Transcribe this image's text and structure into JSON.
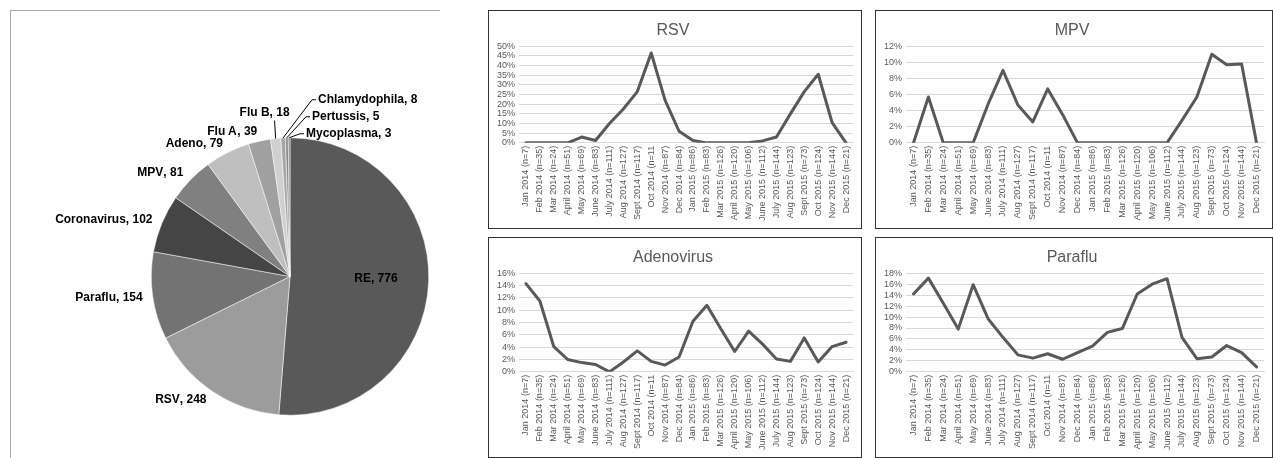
{
  "chart_data": [
    {
      "type": "pie",
      "categories": [
        "RE",
        "RSV",
        "Paraflu",
        "Coronavirus",
        "MPV",
        "Adeno",
        "Flu A",
        "Flu B",
        "Chlamydophila",
        "Pertussis",
        "Mycoplasma"
      ],
      "values": [
        776,
        248,
        154,
        102,
        81,
        79,
        39,
        18,
        8,
        5,
        3
      ],
      "colors": [
        "#595959",
        "#9c9c9c",
        "#737373",
        "#454545",
        "#808080",
        "#bfbfbf",
        "#a0a0a0",
        "#d0d0d0",
        "#a6a6a6",
        "#8c8c8c",
        "#7f7f7f"
      ],
      "value_labels": [
        ", 776",
        ", 248",
        ", 154",
        ", 102",
        ", 81",
        ", 79",
        ", 39",
        ", 18",
        ", 8",
        ", 5",
        ", 3"
      ],
      "legend": false
    },
    {
      "type": "line",
      "title": "RSV",
      "categories": [
        "Jan 2014 (n=7)",
        "Feb 2014 (n=35)",
        "Mar 2014 (n=24)",
        "April 2014 (n=51)",
        "May 2014 (n=69)",
        "June 2014 (n=83)",
        "July 2014 (n=111)",
        "Aug 2014 (n=127)",
        "Sept 2014 (n=117)",
        "Oct 2014 (n=11",
        "Nov 2014 (n=87)",
        "Dec 2014 (n=84)",
        "Jan 2015 (n=86)",
        "Feb 2015 (n=83)",
        "Mar 2015 (n=126)",
        "April 2015 (n=120)",
        "May 2015 (n=106)",
        "June 2015 (n=112)",
        "July 2015 (n=144)",
        "Aug 2015 (n=123)",
        "Sept 2015 (n=73)",
        "Oct 2015 (n=124)",
        "Nov 2015 (n=144)",
        "Dec 2015 (n=21)"
      ],
      "series": [
        {
          "color": "#595959",
          "values": [
            0,
            0,
            0,
            0,
            3,
            1.2,
            10,
            17.5,
            26.5,
            46.5,
            22,
            6,
            1.2,
            0,
            0,
            0,
            0,
            1,
            3,
            15,
            26.5,
            35.5,
            10.5,
            0
          ]
        }
      ],
      "ylim": [
        0,
        50
      ],
      "yticks": [
        {
          "value": 0,
          "label": "0%"
        },
        {
          "value": 5,
          "label": "5%"
        },
        {
          "value": 10,
          "label": "10%"
        },
        {
          "value": 15,
          "label": "15%"
        },
        {
          "value": 20,
          "label": "20%"
        },
        {
          "value": 25,
          "label": "25%"
        },
        {
          "value": 30,
          "label": "30%"
        },
        {
          "value": 35,
          "label": "35%"
        },
        {
          "value": 40,
          "label": "40%"
        },
        {
          "value": 45,
          "label": "45%"
        },
        {
          "value": 50,
          "label": "50%"
        }
      ],
      "grid": "y",
      "legend": false,
      "marker": "none"
    },
    {
      "type": "line",
      "title": "MPV",
      "categories": [
        "Jan 2014 (n=7)",
        "Feb 2014 (n=35)",
        "Mar 2014 (n=24)",
        "April 2014 (n=51)",
        "May 2014 (n=69)",
        "June 2014 (n=83)",
        "July 2014 (n=111)",
        "Aug 2014 (n=127)",
        "Sept 2014 (n=117)",
        "Oct 2014 (n=11",
        "Nov 2014 (n=87)",
        "Dec 2014 (n=84)",
        "Jan 2015 (n=86)",
        "Feb 2015 (n=83)",
        "Mar 2015 (n=126)",
        "April 2015 (n=120)",
        "May 2015 (n=106)",
        "June 2015 (n=112)",
        "July 2015 (n=144)",
        "Aug 2015 (n=123)",
        "Sept 2015 (n=73)",
        "Oct 2015 (n=124)",
        "Nov 2015 (n=144)",
        "Dec 2015 (n=21)"
      ],
      "series": [
        {
          "color": "#595959",
          "values": [
            0,
            5.7,
            0,
            0,
            0,
            4.8,
            9,
            4.7,
            2.6,
            6.7,
            3.5,
            0,
            0,
            0,
            0,
            0,
            0,
            0,
            2.8,
            5.7,
            11,
            9.7,
            9.8,
            0
          ]
        }
      ],
      "ylim": [
        0,
        12
      ],
      "yticks": [
        {
          "value": 0,
          "label": "0%"
        },
        {
          "value": 2,
          "label": "2%"
        },
        {
          "value": 4,
          "label": "4%"
        },
        {
          "value": 6,
          "label": "6%"
        },
        {
          "value": 8,
          "label": "8%"
        },
        {
          "value": 10,
          "label": "10%"
        },
        {
          "value": 12,
          "label": "12%"
        }
      ],
      "grid": "y",
      "legend": false,
      "marker": "none"
    },
    {
      "type": "line",
      "title": "Adenovirus",
      "categories": [
        "Jan 2014 (n=7)",
        "Feb 2014 (n=35)",
        "Mar 2014 (n=24)",
        "April 2014 (n=51)",
        "May 2014 (n=69)",
        "June 2014 (n=83)",
        "July 2014 (n=111)",
        "Aug 2014 (n=127)",
        "Sept 2014 (n=117)",
        "Oct 2014 (n=11",
        "Nov 2014 (n=87)",
        "Dec 2014 (n=84)",
        "Jan 2015 (n=86)",
        "Feb 2015 (n=83)",
        "Mar 2015 (n=126)",
        "April 2015 (n=120)",
        "May 2015 (n=106)",
        "June 2015 (n=112)",
        "July 2015 (n=144)",
        "Aug 2015 (n=123)",
        "Sept 2015 (n=73)",
        "Oct 2015 (n=124)",
        "Nov 2015 (n=144)",
        "Dec 2015 (n=21)"
      ],
      "series": [
        {
          "color": "#595959",
          "values": [
            14.3,
            11.5,
            4.1,
            2,
            1.5,
            1.2,
            0,
            1.6,
            3.4,
            1.7,
            1.1,
            2.4,
            8.2,
            10.8,
            7,
            3.3,
            6.6,
            4.5,
            2.1,
            1.7,
            5.5,
            1.6,
            4.1,
            4.8
          ]
        }
      ],
      "ylim": [
        0,
        16
      ],
      "yticks": [
        {
          "value": 0,
          "label": "0%"
        },
        {
          "value": 2,
          "label": "2%"
        },
        {
          "value": 4,
          "label": "4%"
        },
        {
          "value": 6,
          "label": "6%"
        },
        {
          "value": 8,
          "label": "8%"
        },
        {
          "value": 10,
          "label": "10%"
        },
        {
          "value": 12,
          "label": "12%"
        },
        {
          "value": 14,
          "label": "14%"
        },
        {
          "value": 16,
          "label": "16%"
        }
      ],
      "grid": "y",
      "legend": false,
      "marker": "none"
    },
    {
      "type": "line",
      "title": "Paraflu",
      "categories": [
        "Jan 2014 (n=7)",
        "Feb 2014 (n=35)",
        "Mar 2014 (n=24)",
        "April 2014 (n=51)",
        "May 2014 (n=69)",
        "June 2014 (n=83)",
        "July 2014 (n=111)",
        "Aug 2014 (n=127)",
        "Sept 2014 (n=117)",
        "Oct 2014 (n=11",
        "Nov 2014 (n=87)",
        "Dec 2014 (n=84)",
        "Jan 2015 (n=86)",
        "Feb 2015 (n=83)",
        "Mar 2015 (n=126)",
        "April 2015 (n=120)",
        "May 2015 (n=106)",
        "June 2015 (n=112)",
        "July 2015 (n=144)",
        "Aug 2015 (n=123)",
        "Sept 2015 (n=73)",
        "Oct 2015 (n=124)",
        "Nov 2015 (n=144)",
        "Dec 2015 (n=21)"
      ],
      "series": [
        {
          "color": "#595959",
          "values": [
            14.2,
            17.1,
            12.5,
            7.8,
            15.9,
            9.7,
            6.3,
            3.1,
            2.5,
            3.3,
            2.3,
            3.5,
            4.7,
            7.2,
            7.9,
            14.2,
            16,
            17,
            6.3,
            2.4,
            2.7,
            4.8,
            3.5,
            0.9
          ]
        }
      ],
      "ylim": [
        0,
        18
      ],
      "yticks": [
        {
          "value": 0,
          "label": "0%"
        },
        {
          "value": 2,
          "label": "2%"
        },
        {
          "value": 4,
          "label": "4%"
        },
        {
          "value": 6,
          "label": "6%"
        },
        {
          "value": 8,
          "label": "8%"
        },
        {
          "value": 10,
          "label": "10%"
        },
        {
          "value": 12,
          "label": "12%"
        },
        {
          "value": 14,
          "label": "14%"
        },
        {
          "value": 16,
          "label": "16%"
        },
        {
          "value": 18,
          "label": "18%"
        }
      ],
      "grid": "y",
      "legend": false,
      "marker": "none"
    }
  ]
}
